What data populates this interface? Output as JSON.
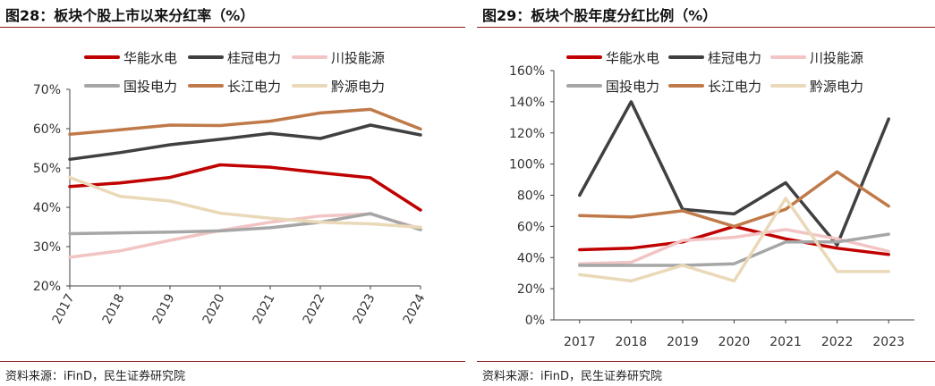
{
  "panels": [
    {
      "title": "图28：板块个股上市以来分红率（%）",
      "source": "资料来源：iFinD，民生证券研究院"
    },
    {
      "title": "图29：板块个股年度分红比例（%）",
      "source": "资料来源：iFinD，民生证券研究院"
    }
  ],
  "chart_data": [
    {
      "type": "line",
      "title": "图28：板块个股上市以来分红率（%）",
      "x": [
        "2017",
        "2018",
        "2019",
        "2020",
        "2021",
        "2022",
        "2023",
        "2024"
      ],
      "yticks": [
        "20%",
        "30%",
        "40%",
        "50%",
        "60%",
        "70%"
      ],
      "ylim": [
        20,
        70
      ],
      "legend": "top",
      "series": [
        {
          "name": "华能水电",
          "color": "#c00000",
          "values": [
            45.3,
            46.2,
            47.6,
            50.8,
            50.2,
            48.8,
            47.5,
            39.3
          ]
        },
        {
          "name": "桂冠电力",
          "color": "#404040",
          "values": [
            52.2,
            53.9,
            55.9,
            57.3,
            58.8,
            57.5,
            60.9,
            58.4
          ]
        },
        {
          "name": "川投能源",
          "color": "#f2c4c4",
          "values": [
            27.3,
            28.9,
            31.6,
            34.1,
            36.2,
            37.8,
            38.3,
            34.6
          ]
        },
        {
          "name": "国投电力",
          "color": "#a6a6a6",
          "values": [
            33.3,
            33.5,
            33.7,
            34.0,
            34.8,
            36.2,
            38.4,
            34.3
          ]
        },
        {
          "name": "长江电力",
          "color": "#c07a4a",
          "values": [
            58.6,
            59.7,
            60.9,
            60.8,
            61.9,
            64.0,
            64.9,
            59.9
          ]
        },
        {
          "name": "黔源电力",
          "color": "#ead9b8",
          "values": [
            47.6,
            42.8,
            41.6,
            38.5,
            37.2,
            36.2,
            35.8,
            34.9
          ]
        }
      ]
    },
    {
      "type": "line",
      "title": "图29：板块个股年度分红比例（%）",
      "x": [
        "2017",
        "2018",
        "2019",
        "2020",
        "2021",
        "2022",
        "2023"
      ],
      "yticks": [
        "0%",
        "20%",
        "40%",
        "60%",
        "80%",
        "100%",
        "120%",
        "140%",
        "160%"
      ],
      "ylim": [
        0,
        160
      ],
      "legend": "top",
      "series": [
        {
          "name": "华能水电",
          "color": "#c00000",
          "values": [
            45,
            46,
            50,
            60,
            52,
            46,
            42
          ]
        },
        {
          "name": "桂冠电力",
          "color": "#404040",
          "values": [
            80,
            140,
            71,
            68,
            88,
            48,
            129
          ]
        },
        {
          "name": "川投能源",
          "color": "#f2c4c4",
          "values": [
            36,
            37,
            51,
            53,
            58,
            52,
            44
          ]
        },
        {
          "name": "国投电力",
          "color": "#a6a6a6",
          "values": [
            35,
            35,
            35,
            36,
            50,
            50,
            55
          ]
        },
        {
          "name": "长江电力",
          "color": "#c07a4a",
          "values": [
            67,
            66,
            70,
            60,
            71,
            95,
            73
          ]
        },
        {
          "name": "黔源电力",
          "color": "#ead9b8",
          "values": [
            29,
            25,
            35,
            25,
            78,
            31,
            31
          ]
        }
      ]
    }
  ]
}
